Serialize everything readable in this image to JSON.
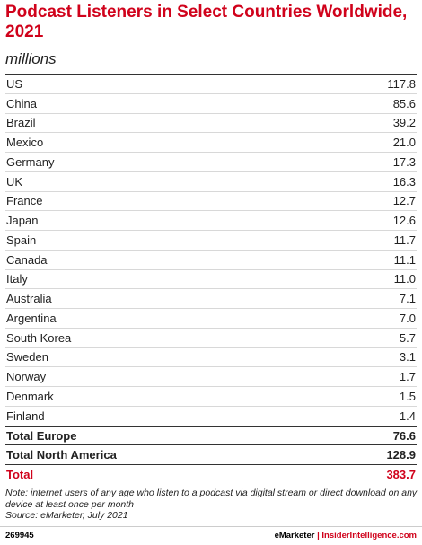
{
  "header": {
    "title": "Podcast Listeners in Select Countries Worldwide, 2021",
    "subtitle": "millions"
  },
  "table": {
    "rows": [
      [
        "US",
        "117.8"
      ],
      [
        "China",
        "85.6"
      ],
      [
        "Brazil",
        "39.2"
      ],
      [
        "Mexico",
        "21.0"
      ],
      [
        "Germany",
        "17.3"
      ],
      [
        "UK",
        "16.3"
      ],
      [
        "France",
        "12.7"
      ],
      [
        "Japan",
        "12.6"
      ],
      [
        "Spain",
        "11.7"
      ],
      [
        "Canada",
        "11.1"
      ],
      [
        "Italy",
        "11.0"
      ],
      [
        "Australia",
        "7.1"
      ],
      [
        "Argentina",
        "7.0"
      ],
      [
        "South Korea",
        "5.7"
      ],
      [
        "Sweden",
        "3.1"
      ],
      [
        "Norway",
        "1.7"
      ],
      [
        "Denmark",
        "1.5"
      ],
      [
        "Finland",
        "1.4"
      ]
    ],
    "totals": [
      [
        "Total Europe",
        "76.6"
      ],
      [
        "Total North America",
        "128.9"
      ],
      [
        "Total",
        "383.7"
      ]
    ]
  },
  "note": "Note: internet users of any age who listen to a podcast via digital stream or direct download on any device at least once per month",
  "source": "Source: eMarketer, July 2021",
  "footer": {
    "id": "269945",
    "brand": "eMarketer",
    "separator": "|",
    "site": "InsiderIntelligence.com"
  }
}
